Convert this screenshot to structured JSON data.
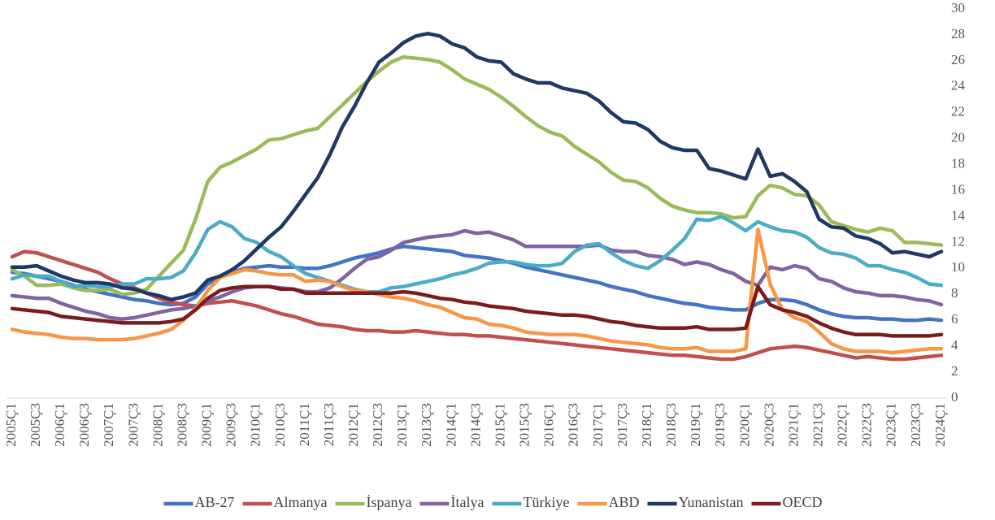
{
  "chart_data": {
    "type": "line",
    "categories": [
      "2005Ç1",
      null,
      "2005Ç3",
      null,
      "2006Ç1",
      null,
      "2006Ç3",
      null,
      "2007Ç1",
      null,
      "2007Ç3",
      null,
      "2008Ç1",
      null,
      "2008Ç3",
      null,
      "2009Ç1",
      null,
      "2009Ç3",
      null,
      "2010Ç1",
      null,
      "2010Ç3",
      null,
      "2011Ç1",
      null,
      "2011Ç3",
      null,
      "2012Ç1",
      null,
      "2012Ç3",
      null,
      "2013Ç1",
      null,
      "2013Ç3",
      null,
      "2014Ç1",
      null,
      "2014Ç3",
      null,
      "2015Ç1",
      null,
      "2015Ç3",
      null,
      "2016Ç1",
      null,
      "2016Ç3",
      null,
      "2017Ç1",
      null,
      "2017Ç3",
      null,
      "2018Ç1",
      null,
      "2018Ç3",
      null,
      "2019Ç1",
      null,
      "2019Ç3",
      null,
      "2020Ç1",
      null,
      "2020Ç3",
      null,
      "2021Ç1",
      null,
      "2021Ç3",
      null,
      "2022Ç1",
      null,
      "2022Ç3",
      null,
      "2023Ç1",
      null,
      "2023Ç3",
      null,
      "2024Ç1"
    ],
    "series": [
      {
        "name": "AB-27",
        "color": "#4472c4",
        "values": [
          9.7,
          9.6,
          9.4,
          9.2,
          9.0,
          8.7,
          8.4,
          8.2,
          8.0,
          7.8,
          7.6,
          7.5,
          7.3,
          7.2,
          7.3,
          7.8,
          8.8,
          9.4,
          9.7,
          10.0,
          10.1,
          10.2,
          10.1,
          10.1,
          10.0,
          10.0,
          10.2,
          10.5,
          10.8,
          11.0,
          11.2,
          11.5,
          11.7,
          11.6,
          11.5,
          11.4,
          11.3,
          11.0,
          10.9,
          10.8,
          10.6,
          10.4,
          10.1,
          9.9,
          9.7,
          9.5,
          9.3,
          9.1,
          8.9,
          8.6,
          8.4,
          8.2,
          7.9,
          7.7,
          7.5,
          7.3,
          7.2,
          7.0,
          6.9,
          6.8,
          6.8,
          7.3,
          7.6,
          7.6,
          7.5,
          7.2,
          6.8,
          6.5,
          6.3,
          6.2,
          6.2,
          6.1,
          6.1,
          6.0,
          6.0,
          6.1,
          6.0
        ]
      },
      {
        "name": "Almanya",
        "color": "#c0504d",
        "values": [
          10.9,
          11.3,
          11.2,
          10.9,
          10.6,
          10.3,
          10.0,
          9.7,
          9.2,
          8.8,
          8.5,
          8.1,
          7.7,
          7.4,
          7.2,
          7.1,
          7.3,
          7.4,
          7.5,
          7.3,
          7.1,
          6.8,
          6.5,
          6.3,
          6.0,
          5.7,
          5.6,
          5.5,
          5.3,
          5.2,
          5.2,
          5.1,
          5.1,
          5.2,
          5.1,
          5.0,
          4.9,
          4.9,
          4.8,
          4.8,
          4.7,
          4.6,
          4.5,
          4.4,
          4.3,
          4.2,
          4.1,
          4.0,
          3.9,
          3.8,
          3.7,
          3.6,
          3.5,
          3.4,
          3.3,
          3.3,
          3.2,
          3.1,
          3.0,
          3.0,
          3.2,
          3.5,
          3.8,
          3.9,
          4.0,
          3.9,
          3.7,
          3.5,
          3.3,
          3.1,
          3.2,
          3.1,
          3.0,
          3.0,
          3.1,
          3.2,
          3.3
        ]
      },
      {
        "name": "İspanya",
        "color": "#9bbb59",
        "values": [
          9.9,
          9.4,
          8.7,
          8.7,
          8.8,
          8.5,
          8.3,
          8.3,
          8.4,
          8.0,
          8.1,
          8.4,
          9.4,
          10.4,
          11.4,
          13.8,
          16.7,
          17.8,
          18.2,
          18.7,
          19.2,
          19.9,
          20.0,
          20.3,
          20.6,
          20.8,
          21.7,
          22.6,
          23.5,
          24.4,
          25.2,
          25.9,
          26.3,
          26.2,
          26.1,
          25.9,
          25.3,
          24.6,
          24.2,
          23.8,
          23.2,
          22.5,
          21.7,
          21.0,
          20.5,
          20.2,
          19.4,
          18.8,
          18.2,
          17.4,
          16.8,
          16.7,
          16.2,
          15.4,
          14.8,
          14.5,
          14.3,
          14.3,
          14.2,
          13.9,
          14.0,
          15.6,
          16.4,
          16.2,
          15.7,
          15.6,
          14.9,
          13.6,
          13.3,
          13.0,
          12.8,
          13.1,
          12.9,
          12.0,
          12.0,
          11.9,
          11.8
        ]
      },
      {
        "name": "İtalya",
        "color": "#8064a2",
        "values": [
          7.9,
          7.8,
          7.7,
          7.7,
          7.3,
          7.0,
          6.7,
          6.5,
          6.2,
          6.1,
          6.2,
          6.4,
          6.6,
          6.8,
          6.9,
          7.1,
          7.5,
          7.8,
          8.2,
          8.5,
          8.6,
          8.6,
          8.5,
          8.4,
          8.2,
          8.2,
          8.5,
          9.2,
          10.0,
          10.7,
          10.9,
          11.4,
          12.0,
          12.2,
          12.4,
          12.5,
          12.6,
          12.9,
          12.7,
          12.8,
          12.5,
          12.2,
          11.7,
          11.7,
          11.7,
          11.7,
          11.7,
          11.7,
          11.8,
          11.4,
          11.3,
          11.3,
          11.0,
          10.9,
          10.7,
          10.3,
          10.5,
          10.3,
          9.9,
          9.6,
          9.0,
          8.7,
          10.1,
          9.9,
          10.2,
          10.0,
          9.2,
          9.0,
          8.5,
          8.2,
          8.1,
          7.9,
          7.9,
          7.8,
          7.6,
          7.5,
          7.2
        ]
      },
      {
        "name": "Türkiye",
        "color": "#4bacc6",
        "values": [
          9.2,
          9.5,
          9.4,
          9.4,
          9.0,
          8.6,
          8.7,
          8.6,
          8.6,
          8.8,
          8.8,
          9.2,
          9.2,
          9.3,
          9.8,
          11.2,
          13.0,
          13.6,
          13.2,
          12.3,
          12.0,
          11.3,
          10.9,
          10.2,
          9.6,
          9.3,
          9.0,
          8.7,
          8.4,
          8.2,
          8.2,
          8.5,
          8.6,
          8.8,
          9.0,
          9.2,
          9.5,
          9.7,
          10.0,
          10.4,
          10.5,
          10.5,
          10.3,
          10.2,
          10.2,
          10.4,
          11.3,
          11.8,
          11.9,
          11.2,
          10.6,
          10.2,
          10.0,
          10.6,
          11.4,
          12.3,
          13.8,
          13.7,
          14.0,
          13.5,
          12.9,
          13.6,
          13.2,
          12.9,
          12.8,
          12.4,
          11.6,
          11.2,
          11.1,
          10.8,
          10.2,
          10.2,
          9.9,
          9.7,
          9.3,
          8.8,
          8.7
        ]
      },
      {
        "name": "ABD",
        "color": "#f79646",
        "values": [
          5.3,
          5.1,
          5.0,
          4.9,
          4.7,
          4.6,
          4.6,
          4.5,
          4.5,
          4.5,
          4.6,
          4.8,
          5.0,
          5.3,
          6.0,
          6.9,
          8.3,
          9.3,
          9.6,
          9.9,
          9.8,
          9.6,
          9.5,
          9.5,
          9.0,
          9.1,
          9.0,
          8.6,
          8.3,
          8.2,
          8.0,
          7.8,
          7.7,
          7.5,
          7.2,
          7.0,
          6.6,
          6.2,
          6.1,
          5.7,
          5.6,
          5.4,
          5.1,
          5.0,
          4.9,
          4.9,
          4.9,
          4.8,
          4.6,
          4.4,
          4.3,
          4.2,
          4.1,
          3.9,
          3.8,
          3.8,
          3.9,
          3.6,
          3.6,
          3.6,
          3.8,
          13.0,
          8.8,
          6.8,
          6.2,
          5.9,
          5.1,
          4.2,
          3.8,
          3.6,
          3.6,
          3.6,
          3.5,
          3.6,
          3.7,
          3.8,
          3.8
        ]
      },
      {
        "name": "Yunanistan",
        "color": "#1f3864",
        "values": [
          10.1,
          10.1,
          10.2,
          9.8,
          9.4,
          9.1,
          8.9,
          8.9,
          8.8,
          8.5,
          8.4,
          8.1,
          7.9,
          7.6,
          7.8,
          8.1,
          9.1,
          9.4,
          9.9,
          10.6,
          11.5,
          12.4,
          13.2,
          14.4,
          15.7,
          17.0,
          18.8,
          20.9,
          22.5,
          24.3,
          25.9,
          26.6,
          27.4,
          27.9,
          28.1,
          27.9,
          27.3,
          27.0,
          26.3,
          26.0,
          25.9,
          25.0,
          24.6,
          24.3,
          24.3,
          23.9,
          23.7,
          23.5,
          22.9,
          22.0,
          21.3,
          21.2,
          20.7,
          19.8,
          19.3,
          19.1,
          19.1,
          17.7,
          17.5,
          17.2,
          16.9,
          19.2,
          17.1,
          17.3,
          16.7,
          15.9,
          13.8,
          13.2,
          13.1,
          12.5,
          12.3,
          11.9,
          11.2,
          11.3,
          11.1,
          10.9,
          11.3
        ]
      },
      {
        "name": "OECD",
        "color": "#7b1c1c",
        "values": [
          6.9,
          6.8,
          6.7,
          6.6,
          6.3,
          6.2,
          6.1,
          6.0,
          5.9,
          5.8,
          5.8,
          5.8,
          5.8,
          5.9,
          6.1,
          6.8,
          7.7,
          8.3,
          8.5,
          8.6,
          8.6,
          8.6,
          8.4,
          8.4,
          8.1,
          8.1,
          8.1,
          8.1,
          8.1,
          8.1,
          8.1,
          8.1,
          8.2,
          8.1,
          7.9,
          7.7,
          7.6,
          7.4,
          7.3,
          7.1,
          7.0,
          6.9,
          6.7,
          6.6,
          6.5,
          6.4,
          6.4,
          6.3,
          6.1,
          5.9,
          5.8,
          5.6,
          5.5,
          5.4,
          5.4,
          5.4,
          5.5,
          5.3,
          5.3,
          5.3,
          5.4,
          8.6,
          7.2,
          6.8,
          6.6,
          6.3,
          5.8,
          5.4,
          5.1,
          4.9,
          4.9,
          4.9,
          4.8,
          4.8,
          4.8,
          4.8,
          4.9
        ]
      }
    ],
    "ylim": [
      0,
      30
    ],
    "yticks": [
      0,
      2,
      4,
      6,
      8,
      10,
      12,
      14,
      16,
      18,
      20,
      22,
      24,
      26,
      28,
      30
    ],
    "y_axis_side": "right",
    "grid": false,
    "legend": "bottom"
  }
}
